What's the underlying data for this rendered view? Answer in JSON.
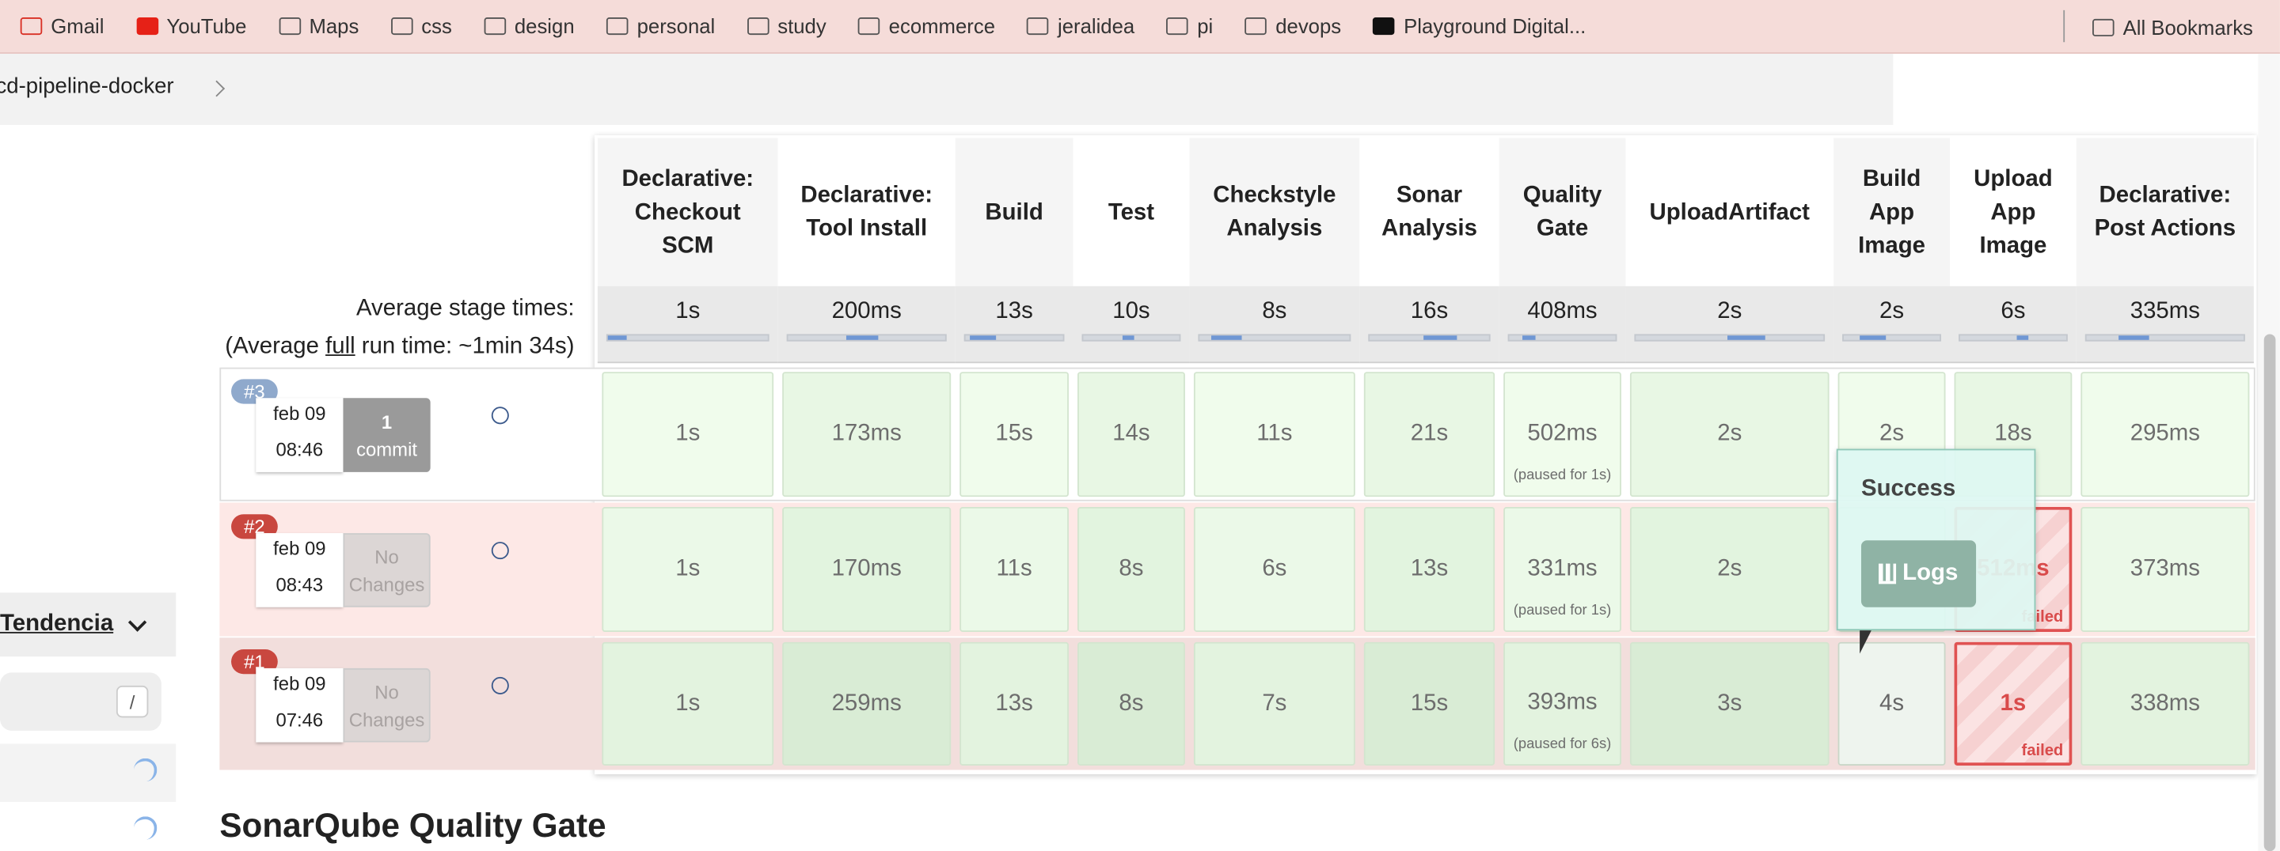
{
  "bookmarks": [
    "Gmail",
    "YouTube",
    "Maps",
    "css",
    "design",
    "personal",
    "study",
    "ecommerce",
    "jeralidea",
    "pi",
    "devops",
    "Playground Digital..."
  ],
  "bookmarks_right": "All Bookmarks",
  "breadcrumb": "cd-pipeline-docker",
  "sidebar": {
    "trend": "Tendencia",
    "search_key": "/"
  },
  "stage_view": {
    "avg_label": "Average stage times:",
    "avg_run": [
      "(Average ",
      "full",
      " run time: ~1min 34s)"
    ],
    "stages": [
      {
        "name": "Declarative: Checkout SCM",
        "avg": "1s"
      },
      {
        "name": "Declarative: Tool Install",
        "avg": "200ms"
      },
      {
        "name": "Build",
        "avg": "13s"
      },
      {
        "name": "Test",
        "avg": "10s"
      },
      {
        "name": "Checkstyle Analysis",
        "avg": "8s"
      },
      {
        "name": "Sonar Analysis",
        "avg": "16s"
      },
      {
        "name": "Quality Gate",
        "avg": "408ms"
      },
      {
        "name": "UploadArtifact",
        "avg": "2s"
      },
      {
        "name": "Build App Image",
        "avg": "2s"
      },
      {
        "name": "Upload App Image",
        "avg": "6s"
      },
      {
        "name": "Declarative: Post Actions",
        "avg": "335ms"
      }
    ],
    "runs": [
      {
        "id": "#3",
        "date": "feb 09",
        "time": "08:46",
        "changes": [
          "1",
          "commit"
        ],
        "cells": [
          {
            "time": "1s"
          },
          {
            "time": "173ms"
          },
          {
            "time": "15s"
          },
          {
            "time": "14s"
          },
          {
            "time": "11s"
          },
          {
            "time": "21s"
          },
          {
            "time": "502ms",
            "note": "(paused for 1s)"
          },
          {
            "time": "2s"
          },
          {
            "time": "2s"
          },
          {
            "time": "18s"
          },
          {
            "time": "295ms"
          }
        ]
      },
      {
        "id": "#2",
        "date": "feb 09",
        "time": "08:43",
        "changes": [
          "No",
          "Changes"
        ],
        "cells": [
          {
            "time": "1s"
          },
          {
            "time": "170ms"
          },
          {
            "time": "11s"
          },
          {
            "time": "8s"
          },
          {
            "time": "6s"
          },
          {
            "time": "13s"
          },
          {
            "time": "331ms",
            "note": "(paused for 1s)"
          },
          {
            "time": "2s"
          },
          {},
          {
            "time": "512ms",
            "status": "failed"
          },
          {
            "time": "373ms"
          }
        ]
      },
      {
        "id": "#1",
        "date": "feb 09",
        "time": "07:46",
        "changes": [
          "No",
          "Changes"
        ],
        "cells": [
          {
            "time": "1s"
          },
          {
            "time": "259ms"
          },
          {
            "time": "13s"
          },
          {
            "time": "8s"
          },
          {
            "time": "7s"
          },
          {
            "time": "15s"
          },
          {
            "time": "393ms",
            "note": "(paused for 6s)"
          },
          {
            "time": "3s"
          },
          {
            "time": "4s"
          },
          {
            "time": "1s",
            "status": "failed"
          },
          {
            "time": "338ms"
          }
        ]
      }
    ]
  },
  "tooltip": {
    "title": "Success",
    "button": "Logs"
  },
  "section_title": "SonarQube Quality Gate"
}
